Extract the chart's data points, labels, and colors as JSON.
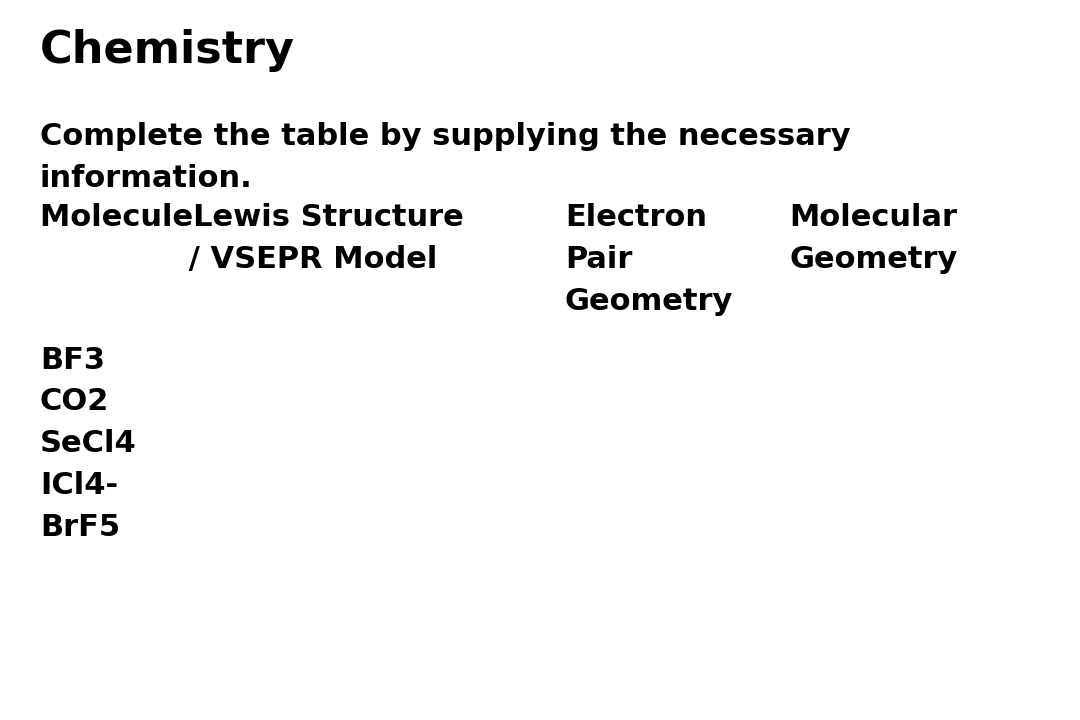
{
  "title": "Chemistry",
  "subtitle_line1": "Complete the table by supplying the necessary",
  "subtitle_line2": "information.",
  "header_col1_line1": "MoleculeLewis Structure",
  "header_col1_line2": "              / VSEPR Model",
  "header_col2_line1": "Electron",
  "header_col2_line2": "Pair",
  "header_col2_line3": "Geometry",
  "header_col3_line1": "Molecular",
  "header_col3_line2": "Geometry",
  "molecules": [
    "BF3",
    "CO2",
    "SeCl4",
    "ICl4-",
    "BrF5"
  ],
  "background_color": "#ffffff",
  "text_color": "#000000",
  "title_fontsize": 32,
  "body_fontsize": 22,
  "molecule_fontsize": 22
}
